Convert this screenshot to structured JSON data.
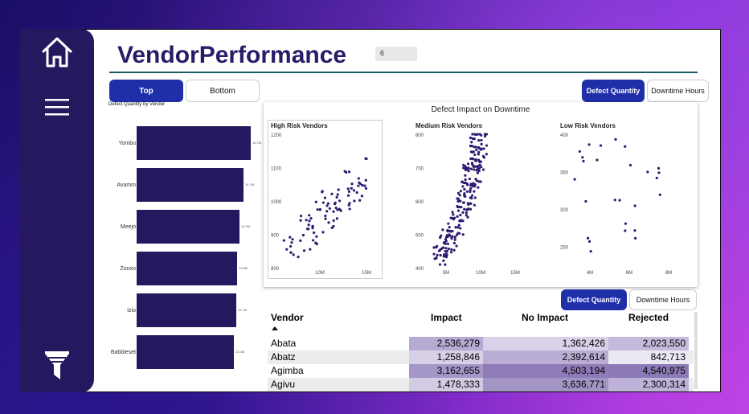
{
  "title": "VendorPerformance",
  "count_value": "6",
  "nav": {
    "home_icon": "home-icon",
    "menu_icon": "menu-icon",
    "filter_icon": "filter-icon"
  },
  "toggle_top": "Top",
  "toggle_bottom": "Bottom",
  "toggle_defect": "Defect Quantity",
  "toggle_downtime": "Downtime Hours",
  "bar_chart": {
    "title": "Defect Quantity by Vendor",
    "items": [
      {
        "label": "Yombu",
        "value": 15.7,
        "value_label": "15.7M"
      },
      {
        "label": "Avamm",
        "value": 14.7,
        "value_label": "14.7M"
      },
      {
        "label": "Meejo",
        "value": 14.2,
        "value_label": "14.2M"
      },
      {
        "label": "Zooxo",
        "value": 13.8,
        "value_label": "13.8M"
      },
      {
        "label": "Izio",
        "value": 13.7,
        "value_label": "13.7M"
      },
      {
        "label": "Babbleset",
        "value": 13.4,
        "value_label": "13.4M"
      }
    ]
  },
  "scatter": {
    "title": "Defect Impact on Downtime",
    "high": {
      "title": "High Risk Vendors",
      "y_ticks": [
        "1200",
        "1100",
        "1000",
        "900",
        "800"
      ],
      "x_ticks": [
        "10M",
        "15M"
      ]
    },
    "medium": {
      "title": "Medium Risk Vendors",
      "y_ticks": [
        "800",
        "700",
        "600",
        "500",
        "400"
      ],
      "x_ticks": [
        "5M",
        "10M",
        "15M"
      ]
    },
    "low": {
      "title": "Low Risk Vendors",
      "y_ticks": [
        "400",
        "350",
        "300",
        "250"
      ],
      "x_ticks": [
        "4M",
        "6M",
        "8M"
      ]
    }
  },
  "table": {
    "headers": {
      "vendor": "Vendor",
      "impact": "Impact",
      "no_impact": "No Impact",
      "rejected": "Rejected"
    },
    "rows": [
      {
        "vendor": "Abata",
        "impact": "2,536,279",
        "no_impact": "1,362,426",
        "rejected": "2,023,550",
        "c1": "#b7aad2",
        "c2": "#d9d1e8",
        "c3": "#c5b9dc"
      },
      {
        "vendor": "Abatz",
        "impact": "1,258,846",
        "no_impact": "2,392,614",
        "rejected": "842,713",
        "c1": "#d8d0e7",
        "c2": "#b9add4",
        "c3": "#ece8f4"
      },
      {
        "vendor": "Agimba",
        "impact": "3,162,655",
        "no_impact": "4,503,194",
        "rejected": "4,540,975",
        "c1": "#a596c8",
        "c2": "#8e7bb8",
        "c3": "#8c7ab7"
      },
      {
        "vendor": "Agivu",
        "impact": "1,478,333",
        "no_impact": "3,636,771",
        "rejected": "2,300,314",
        "c1": "#d3cae3",
        "c2": "#a394c6",
        "c3": "#bfb2d8"
      }
    ]
  }
}
